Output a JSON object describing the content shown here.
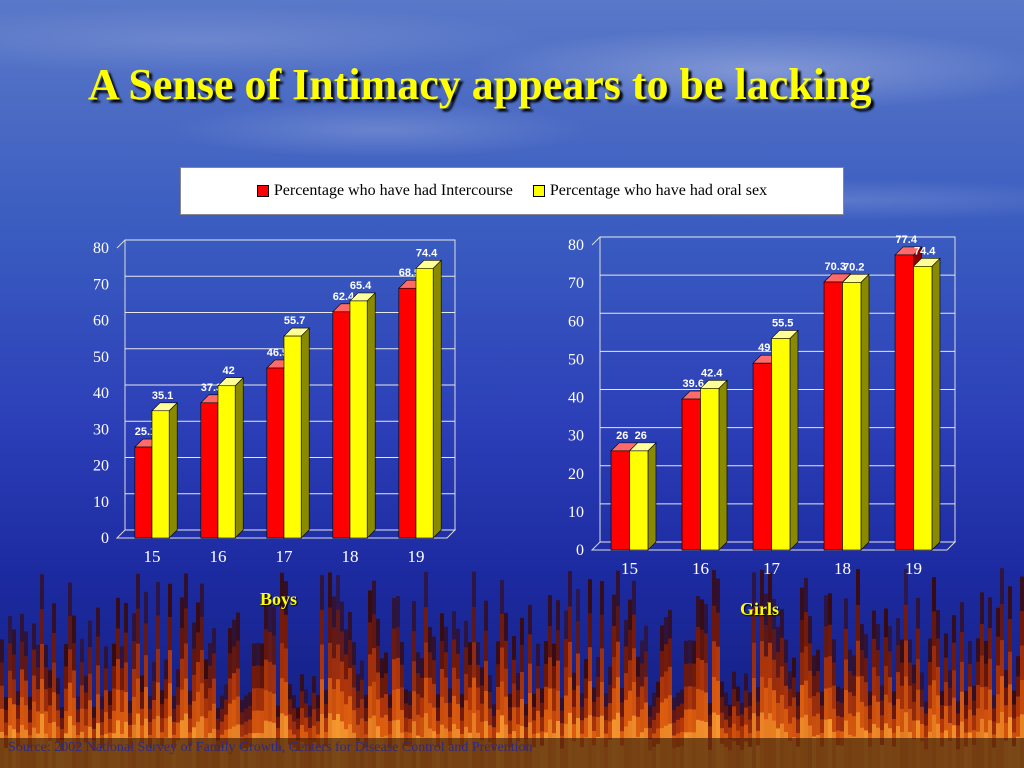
{
  "title": "A Sense of Intimacy appears to be lacking",
  "colors": {
    "intercourse": "#ff0000",
    "oral": "#ffff00",
    "title": "#ffff00"
  },
  "legend": [
    {
      "label": "Percentage who have had Intercourse",
      "color": "#ff0000"
    },
    {
      "label": "Percentage who have had oral sex",
      "color": "#ffff00"
    }
  ],
  "chart_data": [
    {
      "type": "bar",
      "categories": [
        "15",
        "16",
        "17",
        "18",
        "19"
      ],
      "series": [
        {
          "name": "Percentage who have had Intercourse",
          "values": [
            25.1,
            37.3,
            46.9,
            62.4,
            68.9
          ]
        },
        {
          "name": "Percentage who have had oral sex",
          "values": [
            35.1,
            42,
            55.7,
            65.4,
            74.4
          ]
        }
      ],
      "xlabel": "Boys",
      "ylim": [
        0,
        80
      ],
      "yticks": [
        0,
        10,
        20,
        30,
        40,
        50,
        60,
        70,
        80
      ],
      "grid": true,
      "legend": "top"
    },
    {
      "type": "bar",
      "categories": [
        "15",
        "16",
        "17",
        "18",
        "19"
      ],
      "series": [
        {
          "name": "Percentage who have had Intercourse",
          "values": [
            26,
            39.6,
            49,
            70.3,
            77.4
          ]
        },
        {
          "name": "Percentage who have had oral sex",
          "values": [
            26,
            42.4,
            55.5,
            70.2,
            74.4
          ]
        }
      ],
      "xlabel": "Girls",
      "ylim": [
        0,
        80
      ],
      "yticks": [
        0,
        10,
        20,
        30,
        40,
        50,
        60,
        70,
        80
      ],
      "grid": true,
      "legend": "top"
    }
  ],
  "footer": "Source: 2002 National Survey of Family Growth, Centers for Disease Control and Prevention"
}
